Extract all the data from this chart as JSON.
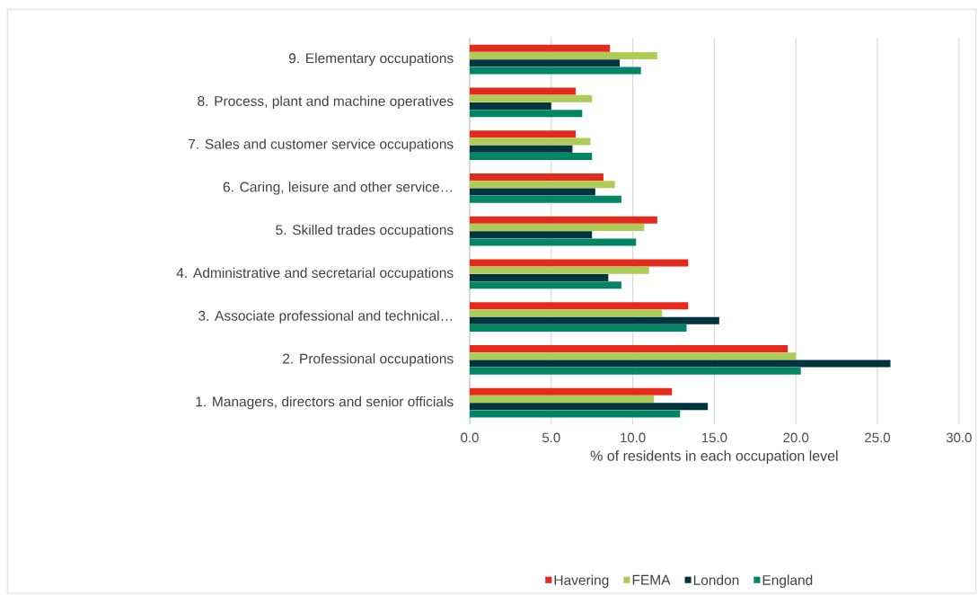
{
  "chart_data": {
    "type": "bar",
    "orientation": "horizontal",
    "categories": [
      "9. Elementary occupations",
      "8. Process, plant and machine operatives",
      "7. Sales and customer service occupations",
      "6. Caring, leisure and other service…",
      "5. Skilled trades occupations",
      "4. Administrative and secretarial occupations",
      "3. Associate professional and technical…",
      "2. Professional occupations",
      "1. Managers, directors and senior officials"
    ],
    "series": [
      {
        "name": "Havering",
        "color": "#e5291a",
        "values": [
          8.6,
          6.5,
          6.5,
          8.2,
          11.5,
          13.4,
          13.4,
          19.5,
          12.4
        ]
      },
      {
        "name": "FEMA",
        "color": "#adcb55",
        "values": [
          11.5,
          7.5,
          7.4,
          8.9,
          10.7,
          11.0,
          11.8,
          20.0,
          11.3
        ]
      },
      {
        "name": "London",
        "color": "#00343e",
        "values": [
          9.2,
          5.0,
          6.3,
          7.7,
          7.5,
          8.5,
          15.3,
          25.8,
          14.6
        ]
      },
      {
        "name": "England",
        "color": "#008565",
        "values": [
          10.5,
          6.9,
          7.5,
          9.3,
          10.2,
          9.3,
          13.3,
          20.3,
          12.9
        ]
      }
    ],
    "xlabel": "% of residents in each occupation level",
    "xlim": [
      0,
      30
    ],
    "xticks": [
      {
        "value": 0,
        "label": "0.0"
      },
      {
        "value": 5,
        "label": "5.0"
      },
      {
        "value": 10,
        "label": "10.0"
      },
      {
        "value": 15,
        "label": "15.0"
      },
      {
        "value": 20,
        "label": "20.0"
      },
      {
        "value": 25,
        "label": "25.0"
      },
      {
        "value": 30,
        "label": "30.0"
      }
    ],
    "grid": "x",
    "legend": "bottom"
  }
}
